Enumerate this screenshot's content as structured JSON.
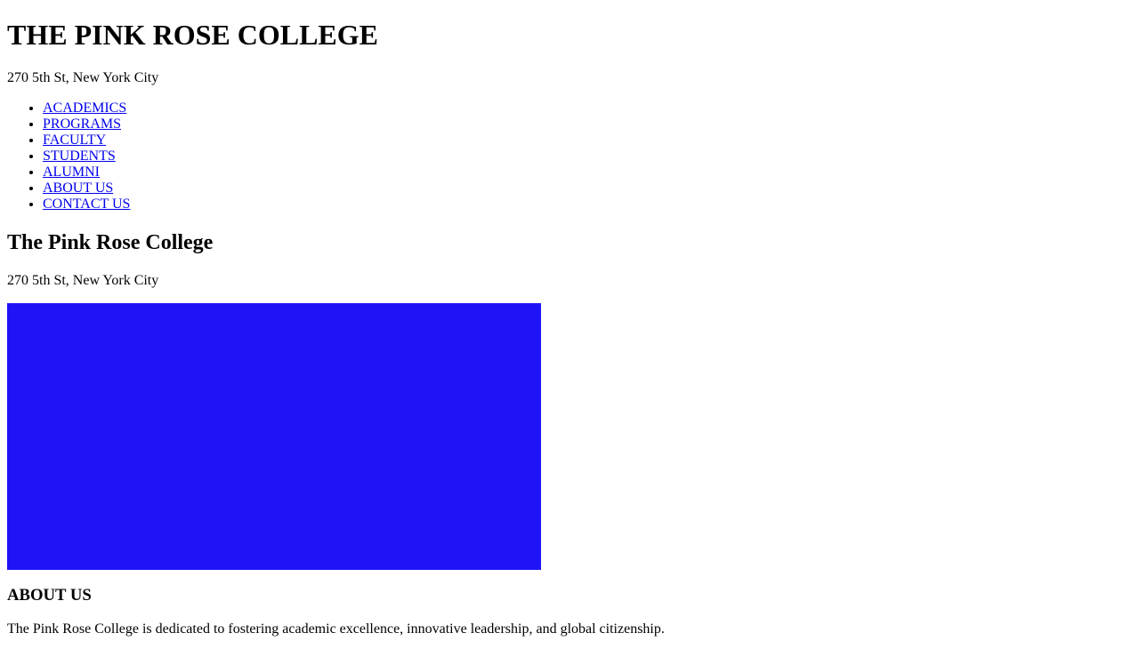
{
  "header": {
    "title": "THE PINK ROSE COLLEGE",
    "address": "270 5th St, New York City"
  },
  "nav": {
    "items": [
      {
        "label": "ACADEMICS"
      },
      {
        "label": "PROGRAMS"
      },
      {
        "label": "FACULTY"
      },
      {
        "label": "STUDENTS"
      },
      {
        "label": "ALUMNI"
      },
      {
        "label": "ABOUT US"
      },
      {
        "label": "CONTACT US"
      }
    ]
  },
  "main": {
    "title": "The Pink Rose College",
    "address": "270 5th St, New York City",
    "hero_color": "#1f14f6"
  },
  "about": {
    "heading": "ABOUT US",
    "text": "The Pink Rose College is dedicated to fostering academic excellence, innovative leadership, and global citizenship."
  },
  "colors": {
    "link": "#0000ee",
    "text": "#000000",
    "background": "#ffffff"
  }
}
